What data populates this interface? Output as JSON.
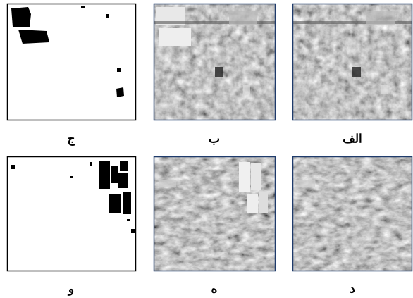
{
  "panels": [
    {
      "label": "الف"
    },
    {
      "label": "ب"
    },
    {
      "label": "ج"
    },
    {
      "label": "د"
    },
    {
      "label": "ه"
    },
    {
      "label": "و"
    }
  ]
}
